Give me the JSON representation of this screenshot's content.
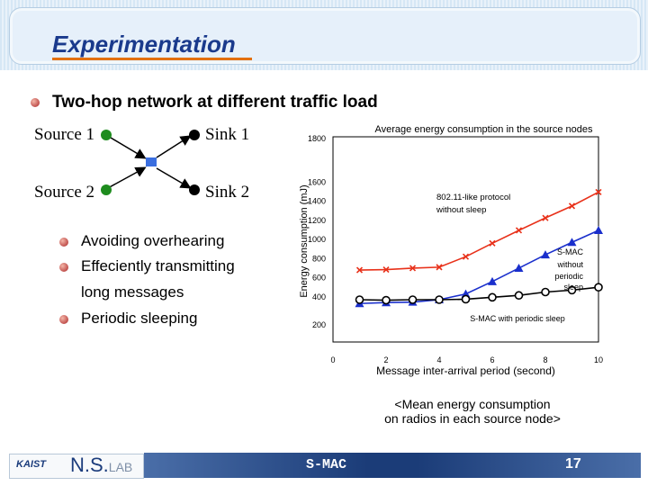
{
  "slide": {
    "title": "Experimentation",
    "main_bullet": "Two-hop network at different traffic load",
    "footer_text": "S-MAC",
    "page_number": "17",
    "logos": {
      "kaist": "KAIST",
      "ns": "N.S.",
      "lab": "LAB"
    }
  },
  "diagram": {
    "source1": "Source 1",
    "source2": "Source 2",
    "sink1": "Sink 1",
    "sink2": "Sink 2",
    "colors": {
      "source": "#1e8c1e",
      "relay": "#3b6fe0",
      "sink": "#000000"
    }
  },
  "sub_bullets": [
    "Avoiding overhearing",
    "Effeciently transmitting",
    "long messages",
    "Periodic sleeping"
  ],
  "caption": {
    "line1": "<Mean energy consumption",
    "line2": "on radios in each source node>"
  },
  "chart_data": {
    "type": "line",
    "title": "Average energy consumption in the source nodes",
    "xlabel": "Message inter-arrival period (second)",
    "ylabel": "Energy consumption (mJ)",
    "xlim": [
      0,
      10
    ],
    "ylim": [
      200,
      1800
    ],
    "x_ticks": [
      0,
      2,
      4,
      6,
      8,
      10
    ],
    "y_ticks": [
      200,
      400,
      600,
      800,
      1000,
      1200,
      1400,
      1600,
      1800
    ],
    "grid": false,
    "series": [
      {
        "name": "802.11-like protocol without sleep",
        "color": "#e8311a",
        "marker": "x",
        "x": [
          1,
          2,
          3,
          4,
          5,
          6,
          7,
          8,
          9,
          10
        ],
        "y": [
          670,
          675,
          690,
          700,
          810,
          950,
          1085,
          1215,
          1340,
          1485
        ]
      },
      {
        "name": "S-MAC without periodic sleep",
        "color": "#1a2fcc",
        "marker": "triangle",
        "x": [
          1,
          2,
          3,
          4,
          5,
          6,
          7,
          8,
          9,
          10
        ],
        "y": [
          320,
          330,
          335,
          360,
          420,
          550,
          690,
          830,
          960,
          1085
        ]
      },
      {
        "name": "S-MAC with periodic sleep",
        "color": "#000000",
        "marker": "circle",
        "x": [
          1,
          2,
          3,
          4,
          5,
          6,
          7,
          8,
          9,
          10
        ],
        "y": [
          360,
          355,
          360,
          360,
          365,
          385,
          405,
          440,
          460,
          490
        ]
      }
    ],
    "annotations": [
      {
        "text_lines": [
          "802.11-like protocol",
          "without sleep"
        ]
      },
      {
        "text_lines": [
          "S-MAC",
          "without",
          "periodic",
          "sleep"
        ]
      },
      {
        "text_lines": [
          "S-MAC with periodic sleep"
        ]
      }
    ]
  }
}
